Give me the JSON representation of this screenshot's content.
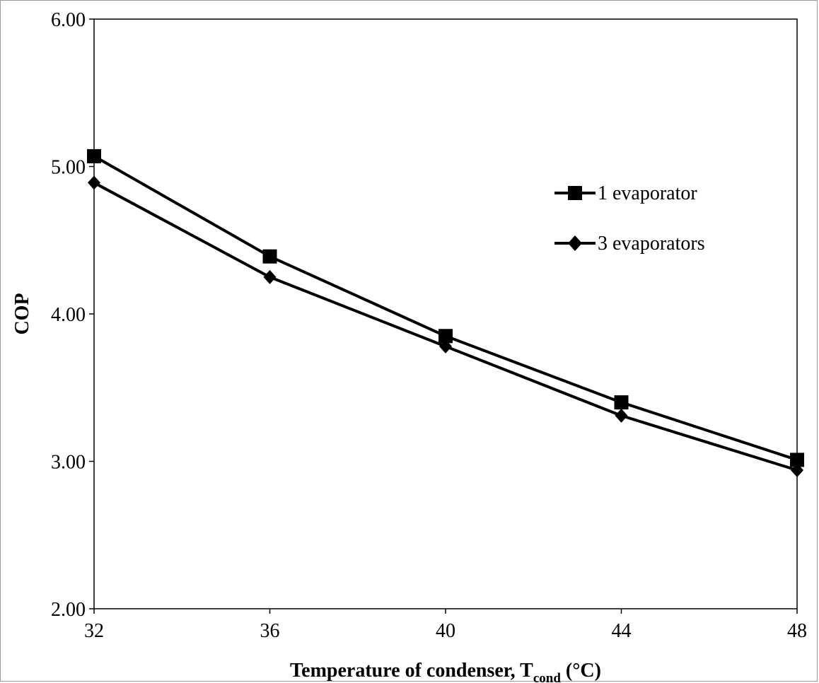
{
  "chart_data": {
    "type": "line",
    "title": "",
    "xlabel_main": "Temperature of condenser, T",
    "xlabel_sub": "cond",
    "xlabel_unit": " (°C)",
    "ylabel": "COP",
    "x": [
      32,
      36,
      40,
      44,
      48
    ],
    "xlim": [
      32,
      48
    ],
    "ylim": [
      2.0,
      6.0
    ],
    "x_ticks": [
      "32",
      "36",
      "40",
      "44",
      "48"
    ],
    "y_ticks": [
      "2.00",
      "3.00",
      "4.00",
      "5.00",
      "6.00"
    ],
    "grid": false,
    "legend_position": "right",
    "series": [
      {
        "name": "1 evaporator",
        "marker": "square",
        "color": "#000000",
        "values": [
          5.07,
          4.39,
          3.85,
          3.4,
          3.01
        ]
      },
      {
        "name": "3 evaporators",
        "marker": "diamond",
        "color": "#000000",
        "values": [
          4.89,
          4.25,
          3.78,
          3.31,
          2.94
        ]
      }
    ]
  }
}
